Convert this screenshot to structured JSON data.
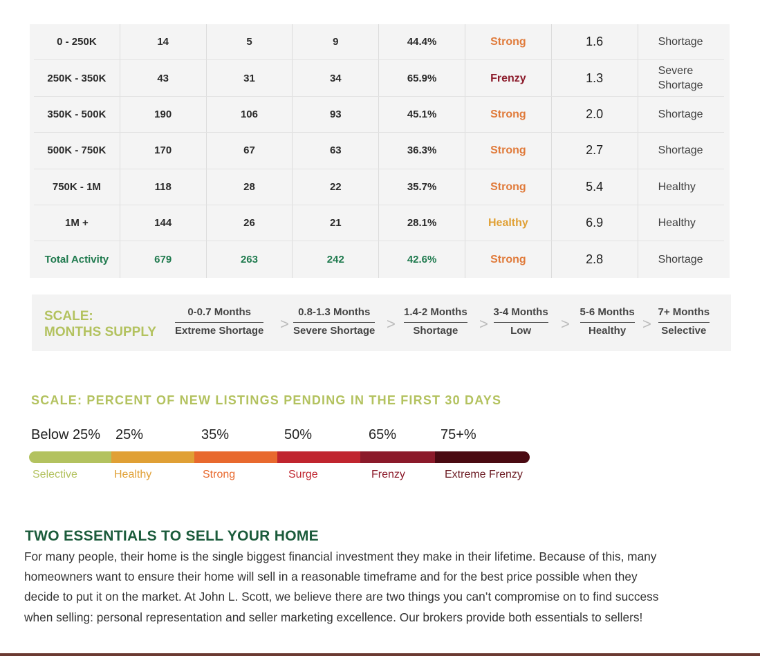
{
  "market_table": {
    "rows": [
      {
        "price": "0 - 250K",
        "c1": "14",
        "c2": "5",
        "c3": "9",
        "pct": "44.4%",
        "market": "Strong",
        "market_color": "#e07a3a",
        "mos": "1.6",
        "supply": "Shortage"
      },
      {
        "price": "250K - 350K",
        "c1": "43",
        "c2": "31",
        "c3": "34",
        "pct": "65.9%",
        "market": "Frenzy",
        "market_color": "#8b1a2a",
        "mos": "1.3",
        "supply": "Severe\nShortage"
      },
      {
        "price": "350K - 500K",
        "c1": "190",
        "c2": "106",
        "c3": "93",
        "pct": "45.1%",
        "market": "Strong",
        "market_color": "#e07a3a",
        "mos": "2.0",
        "supply": "Shortage"
      },
      {
        "price": "500K - 750K",
        "c1": "170",
        "c2": "67",
        "c3": "63",
        "pct": "36.3%",
        "market": "Strong",
        "market_color": "#e07a3a",
        "mos": "2.7",
        "supply": "Shortage"
      },
      {
        "price": "750K - 1M",
        "c1": "118",
        "c2": "28",
        "c3": "22",
        "pct": "35.7%",
        "market": "Strong",
        "market_color": "#e07a3a",
        "mos": "5.4",
        "supply": "Healthy"
      },
      {
        "price": "1M +",
        "c1": "144",
        "c2": "26",
        "c3": "21",
        "pct": "28.1%",
        "market": "Healthy",
        "market_color": "#e0a035",
        "mos": "6.9",
        "supply": "Healthy"
      }
    ],
    "total": {
      "price": "Total Activity",
      "c1": "679",
      "c2": "263",
      "c3": "242",
      "pct": "42.6%",
      "market": "Strong",
      "market_color": "#e07a3a",
      "mos": "2.8",
      "supply": "Shortage"
    }
  },
  "supply_scale": {
    "title_line1": "SCALE:",
    "title_line2": "MONTHS SUPPLY",
    "chevron": ">",
    "segments": [
      {
        "range": "0-0.7 Months",
        "label": "Extreme Shortage"
      },
      {
        "range": "0.8-1.3 Months",
        "label": "Severe Shortage"
      },
      {
        "range": "1.4-2 Months",
        "label": "Shortage"
      },
      {
        "range": "3-4 Months",
        "label": "Low"
      },
      {
        "range": "5-6 Months",
        "label": "Healthy"
      },
      {
        "range": "7+ Months",
        "label": "Selective"
      }
    ]
  },
  "pending_scale": {
    "title": "SCALE: PERCENT OF NEW LISTINGS PENDING IN THE FIRST 30 DAYS",
    "thresholds": [
      "Below 25%",
      "25%",
      "35%",
      "50%",
      "65%",
      "75+%"
    ],
    "bands": [
      {
        "name": "Selective",
        "color": "#b3c25f"
      },
      {
        "name": "Healthy",
        "color": "#e0a035"
      },
      {
        "name": "Strong",
        "color": "#e8692e"
      },
      {
        "name": "Surge",
        "color": "#c0252f"
      },
      {
        "name": "Frenzy",
        "color": "#8b1a2a"
      },
      {
        "name": "Extreme Frenzy",
        "color": "#4a0a12"
      }
    ],
    "name_colors": [
      "#b3c25f",
      "#e0a035",
      "#e8692e",
      "#c0252f",
      "#8b1a2a",
      "#6b1a22"
    ]
  },
  "essentials": {
    "title": "TWO ESSENTIALS TO SELL YOUR HOME",
    "body": "For many people, their home is the single biggest financial investment they make in their lifetime. Because of this, many homeowners want to ensure their home will sell in a reasonable timeframe and for the best price possible when they decide to put it on the market. At John L. Scott, we believe there are two things you can’t compromise on to find success when selling: personal representation and seller marketing excellence. Our brokers provide both essentials to sellers!"
  }
}
